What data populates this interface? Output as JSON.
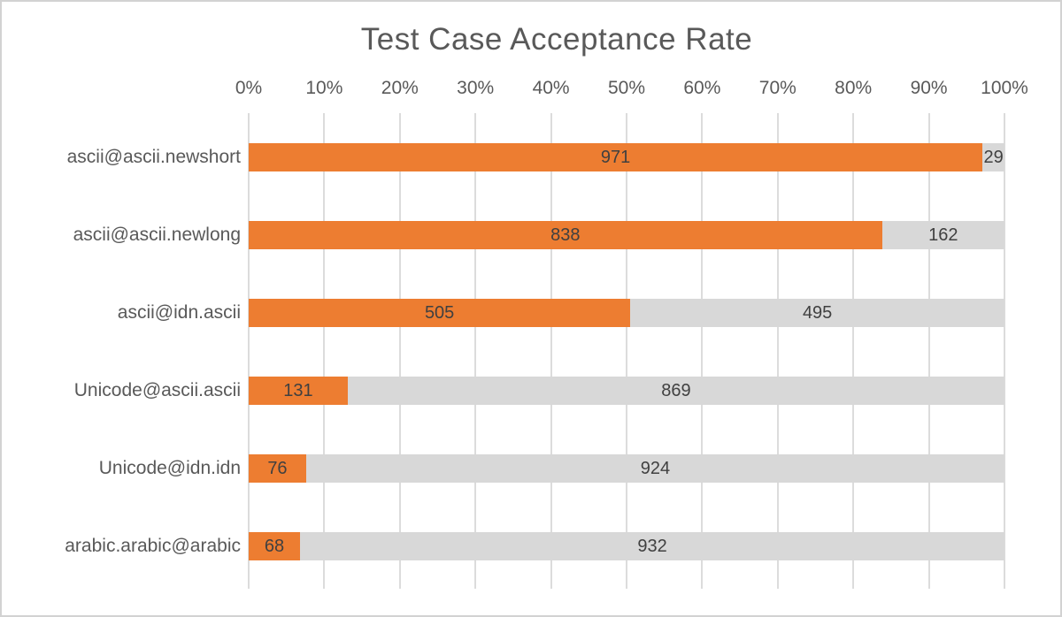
{
  "frame": {
    "background": "#ffffff",
    "border_color": "#d2d2d2"
  },
  "chart_data": {
    "type": "bar",
    "orientation": "horizontal",
    "stacked": true,
    "title": "Test Case Acceptance Rate",
    "categories": [
      "ascii@ascii.newshort",
      "ascii@ascii.newlong",
      "ascii@idn.ascii",
      "Unicode@ascii.ascii",
      "Unicode@idn.idn",
      "arabic.arabic@arabic"
    ],
    "series": [
      {
        "name": "orange",
        "color": "#ED7D31",
        "values": [
          971,
          838,
          505,
          131,
          76,
          68
        ]
      },
      {
        "name": "gray",
        "color": "#D8D8D8",
        "values": [
          29,
          162,
          495,
          869,
          924,
          932
        ]
      }
    ],
    "x_ticks": [
      "0%",
      "10%",
      "20%",
      "30%",
      "40%",
      "50%",
      "60%",
      "70%",
      "80%",
      "90%",
      "100%"
    ],
    "xlim": [
      0,
      1000
    ],
    "grid": true,
    "legend_position": "none",
    "value_labels": true
  },
  "styles": {
    "title_color": "#595959",
    "tick_label_color": "#595959",
    "category_label_color": "#595959",
    "value_label_color": "#404040",
    "gridline_color": "#DCDCDC"
  }
}
